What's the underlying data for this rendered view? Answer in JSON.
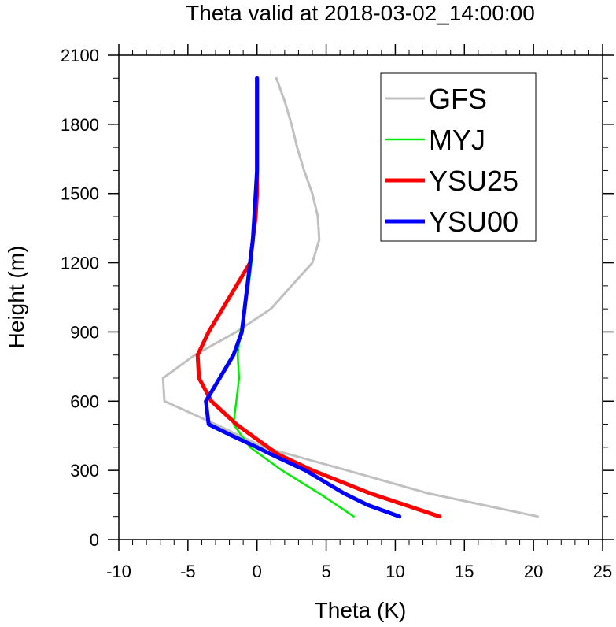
{
  "chart_data": {
    "type": "line",
    "title": "Theta valid at 2018-03-02_14:00:00",
    "xlabel": "Theta (K)",
    "ylabel": "Height (m)",
    "xlim": [
      -10,
      25
    ],
    "ylim": [
      0,
      2100
    ],
    "xticks": [
      -10,
      -5,
      0,
      5,
      10,
      15,
      20,
      25
    ],
    "xtick_labels": [
      "-10",
      "-5",
      "0",
      "5",
      "10",
      "15",
      "20",
      "25"
    ],
    "yticks": [
      0,
      300,
      600,
      900,
      1200,
      1500,
      1800,
      2100
    ],
    "ytick_labels": [
      "0",
      "300",
      "600",
      "900",
      "1200",
      "1500",
      "1800",
      "2100"
    ],
    "grid": false,
    "legend_position": "top-right",
    "series": [
      {
        "name": "GFS",
        "color": "#c0c0c0",
        "points": [
          [
            20.3,
            100
          ],
          [
            12.4,
            200
          ],
          [
            6.5,
            300
          ],
          [
            0.5,
            400
          ],
          [
            -3.0,
            500
          ],
          [
            -6.7,
            600
          ],
          [
            -6.8,
            700
          ],
          [
            -4.5,
            800
          ],
          [
            -1.5,
            900
          ],
          [
            1.0,
            1000
          ],
          [
            2.5,
            1100
          ],
          [
            4.0,
            1200
          ],
          [
            4.5,
            1300
          ],
          [
            4.4,
            1400
          ],
          [
            4.0,
            1500
          ],
          [
            3.4,
            1600
          ],
          [
            2.9,
            1700
          ],
          [
            2.5,
            1800
          ],
          [
            2.0,
            1900
          ],
          [
            1.4,
            2000
          ]
        ]
      },
      {
        "name": "MYJ",
        "color": "#00ee00",
        "points": [
          [
            7.0,
            100
          ],
          [
            4.5,
            200
          ],
          [
            1.8,
            300
          ],
          [
            -0.5,
            400
          ],
          [
            -1.7,
            500
          ],
          [
            -1.5,
            600
          ],
          [
            -1.3,
            700
          ],
          [
            -1.4,
            800
          ],
          [
            -1.2,
            900
          ],
          [
            -0.9,
            1000
          ],
          [
            -0.6,
            1100
          ],
          [
            -0.4,
            1200
          ],
          [
            -0.3,
            1300
          ],
          [
            -0.2,
            1400
          ],
          [
            -0.1,
            1500
          ],
          [
            -0.05,
            1600
          ],
          [
            0.0,
            1700
          ],
          [
            0.0,
            1800
          ],
          [
            0.0,
            1900
          ],
          [
            0.0,
            2000
          ]
        ]
      },
      {
        "name": "YSU25",
        "color": "#ff0000",
        "points": [
          [
            13.2,
            100
          ],
          [
            10.2,
            160
          ],
          [
            8.2,
            200
          ],
          [
            4.0,
            300
          ],
          [
            1.5,
            370
          ],
          [
            0.8,
            400
          ],
          [
            -1.5,
            500
          ],
          [
            -3.3,
            600
          ],
          [
            -4.2,
            700
          ],
          [
            -4.3,
            800
          ],
          [
            -3.5,
            900
          ],
          [
            -2.5,
            1000
          ],
          [
            -1.5,
            1100
          ],
          [
            -0.5,
            1200
          ],
          [
            -0.3,
            1300
          ],
          [
            -0.1,
            1400
          ],
          [
            0.0,
            1500
          ],
          [
            0.0,
            1600
          ],
          [
            0.0,
            1700
          ],
          [
            0.0,
            1800
          ],
          [
            0.0,
            1900
          ],
          [
            0.0,
            2000
          ]
        ]
      },
      {
        "name": "YSU00",
        "color": "#0000ff",
        "points": [
          [
            10.3,
            100
          ],
          [
            8.0,
            150
          ],
          [
            6.3,
            200
          ],
          [
            3.5,
            300
          ],
          [
            1.0,
            370
          ],
          [
            0.0,
            400
          ],
          [
            -1.8,
            450
          ],
          [
            -3.5,
            500
          ],
          [
            -3.7,
            600
          ],
          [
            -2.7,
            700
          ],
          [
            -1.7,
            800
          ],
          [
            -1.1,
            900
          ],
          [
            -0.9,
            1000
          ],
          [
            -0.7,
            1100
          ],
          [
            -0.5,
            1200
          ],
          [
            -0.3,
            1300
          ],
          [
            -0.2,
            1400
          ],
          [
            -0.1,
            1500
          ],
          [
            0.0,
            1600
          ],
          [
            0.0,
            1700
          ],
          [
            0.0,
            1800
          ],
          [
            0.0,
            1900
          ],
          [
            0.0,
            2000
          ]
        ]
      }
    ]
  }
}
